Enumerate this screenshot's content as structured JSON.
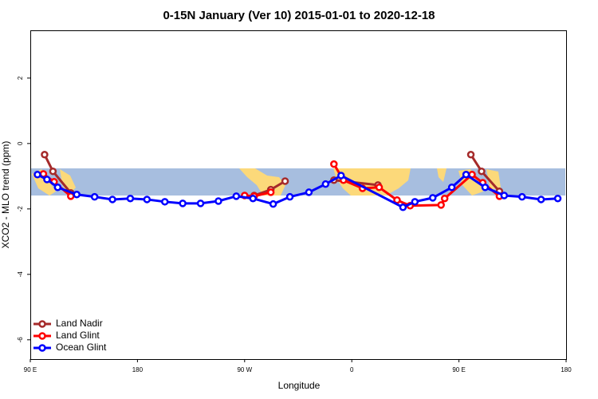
{
  "chart_data": {
    "type": "line",
    "title": "0-15N January (Ver 10)   2015-01-01 to 2020-12-18",
    "x_label": "Longitude",
    "y_label": "XCO2 - MLO trend (ppm)",
    "xlim": [
      90,
      540
    ],
    "xticks": [
      {
        "value": 90,
        "label": "90 E"
      },
      180,
      {
        "value": 270,
        "label": "90 W"
      },
      {
        "value": 360,
        "label": "0"
      },
      {
        "value": 450,
        "label": "90 E"
      },
      {
        "value": 540,
        "label": "180"
      }
    ],
    "ylim": [
      -6.59,
      3.46
    ],
    "yticks": [
      -6,
      -4,
      -2,
      0,
      2
    ],
    "legend": "bottom-left",
    "series": [
      {
        "name": "Land Nadir",
        "color": "#a52a2a",
        "x": [
          102,
          109,
          124,
          null,
          278,
          292,
          304,
          null,
          345,
          382,
          null,
          460,
          469,
          484
        ],
        "values": [
          -0.34,
          -0.85,
          -1.51,
          null,
          -1.59,
          -1.41,
          -1.15,
          null,
          -1.12,
          -1.27,
          null,
          -0.34,
          -0.85,
          -1.46
        ]
      },
      {
        "name": "Land Glint",
        "color": "#ff0000",
        "x": [
          101,
          110,
          124,
          null,
          270,
          278,
          292,
          null,
          345,
          353,
          369,
          383,
          398,
          409,
          435,
          438,
          461,
          470,
          484
        ],
        "values": [
          -0.93,
          -1.17,
          -1.61,
          null,
          -1.59,
          -1.61,
          -1.49,
          null,
          -0.63,
          -1.12,
          -1.37,
          -1.34,
          -1.73,
          -1.9,
          -1.88,
          -1.68,
          -0.95,
          -1.2,
          -1.61
        ]
      },
      {
        "name": "Ocean Glint",
        "color": "#0000ff",
        "x": [
          96,
          104,
          113,
          129,
          144,
          159,
          174,
          188,
          203,
          218,
          233,
          248,
          263,
          277,
          294,
          308,
          324,
          338,
          351,
          403,
          413,
          428,
          444,
          456,
          472,
          488,
          503,
          519,
          533
        ],
        "values": [
          -0.95,
          -1.1,
          -1.34,
          -1.56,
          -1.63,
          -1.71,
          -1.68,
          -1.71,
          -1.78,
          -1.83,
          -1.83,
          -1.76,
          -1.61,
          -1.68,
          -1.85,
          -1.63,
          -1.49,
          -1.24,
          -0.98,
          -1.95,
          -1.78,
          -1.66,
          -1.34,
          -0.95,
          -1.34,
          -1.59,
          -1.63,
          -1.71,
          -1.68
        ]
      }
    ]
  }
}
